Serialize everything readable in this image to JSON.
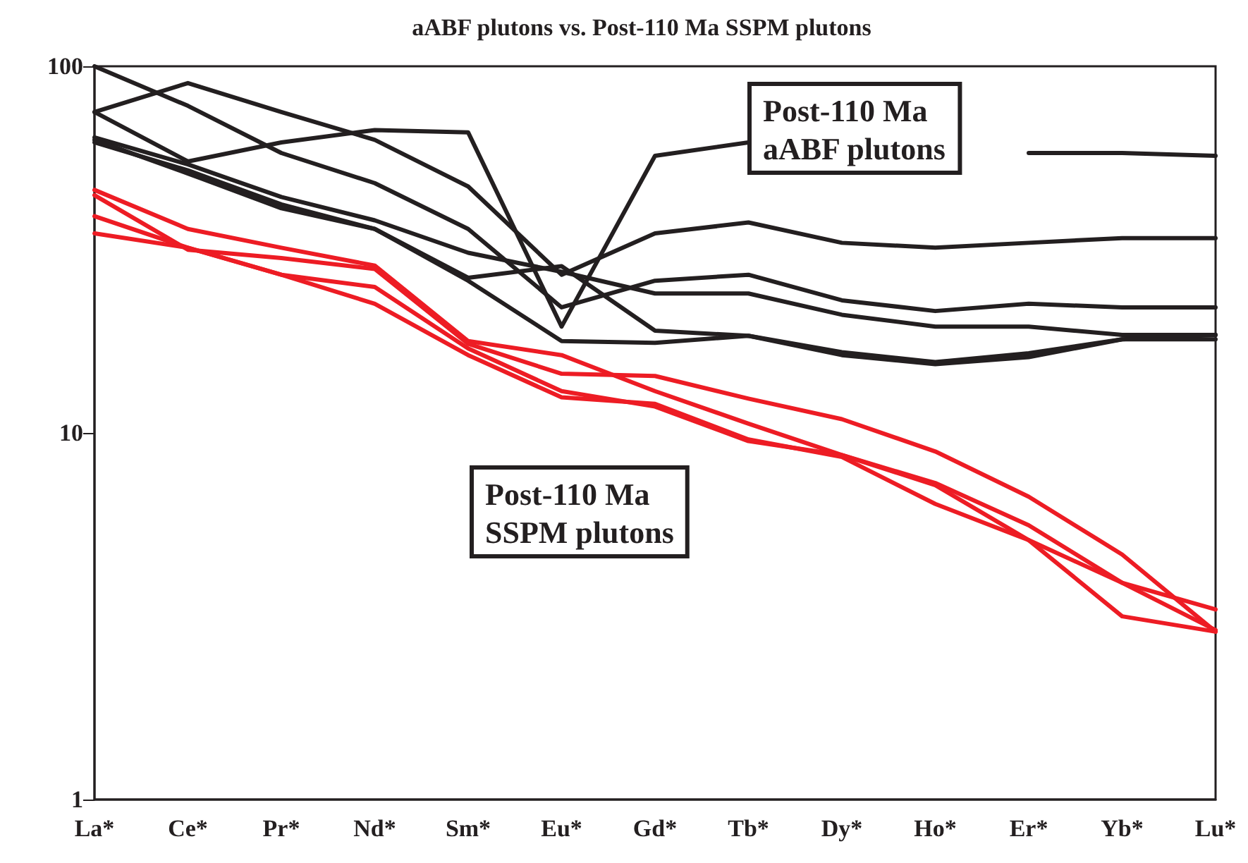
{
  "chart_data": {
    "type": "line",
    "title": "aABF plutons vs. Post-110 Ma SSPM plutons",
    "categories": [
      "La*",
      "Ce*",
      "Pr*",
      "Nd*",
      "Sm*",
      "Eu*",
      "Gd*",
      "Tb*",
      "Dy*",
      "Ho*",
      "Er*",
      "Yb*",
      "Lu*"
    ],
    "series": [
      {
        "color": "#231f20",
        "values": [
          100,
          78,
          58,
          48,
          36,
          22,
          26,
          27,
          23,
          21.5,
          22.5,
          22,
          22
        ]
      },
      {
        "color": "#231f20",
        "values": [
          75,
          90,
          75,
          63,
          47,
          27,
          35,
          37.5,
          33,
          32,
          33,
          34,
          34
        ]
      },
      {
        "color": "#231f20",
        "values": [
          75,
          55,
          62,
          67,
          66,
          19.5,
          57,
          62,
          null,
          null,
          58,
          58,
          57
        ]
      },
      {
        "color": "#231f20",
        "values": [
          64,
          54,
          44,
          38,
          31,
          27.5,
          24,
          24,
          21,
          19.5,
          19.5,
          18.5,
          18.5
        ]
      },
      {
        "color": "#231f20",
        "values": [
          62,
          52,
          42,
          36,
          26.5,
          28.5,
          19,
          18.4,
          16.3,
          15.4,
          16.1,
          18,
          18.5
        ]
      },
      {
        "color": "#231f20",
        "values": [
          63,
          51,
          41,
          36,
          26,
          17.8,
          17.6,
          18.4,
          16.6,
          15.6,
          16.5,
          18,
          18
        ]
      },
      {
        "color": "#ed1c24",
        "values": [
          46,
          36,
          32,
          28.6,
          17.8,
          16.3,
          13,
          10.6,
          8.7,
          7.3,
          5.6,
          3.9,
          2.9
        ]
      },
      {
        "color": "#ed1c24",
        "values": [
          44.5,
          31.6,
          30,
          28,
          17.5,
          14.5,
          14.3,
          12.4,
          10.9,
          8.9,
          6.7,
          4.66,
          2.87
        ]
      },
      {
        "color": "#ed1c24",
        "values": [
          39,
          32,
          27,
          25,
          17,
          13,
          11.8,
          9.5,
          8.7,
          7.2,
          5.1,
          3.9,
          3.3
        ]
      },
      {
        "color": "#ed1c24",
        "values": [
          35,
          32,
          27,
          22.5,
          16.3,
          12.5,
          12,
          9.6,
          8.6,
          6.4,
          5.1,
          3.16,
          2.87
        ]
      }
    ],
    "ylim": [
      1,
      100
    ],
    "yticks": [
      1,
      10,
      100
    ],
    "log": true,
    "grid": false,
    "marker": "none",
    "line_style": "solid",
    "annotations": [
      "Post-110 Ma\naABF plutons",
      "Post-110 Ma\nSSPM plutons"
    ]
  }
}
